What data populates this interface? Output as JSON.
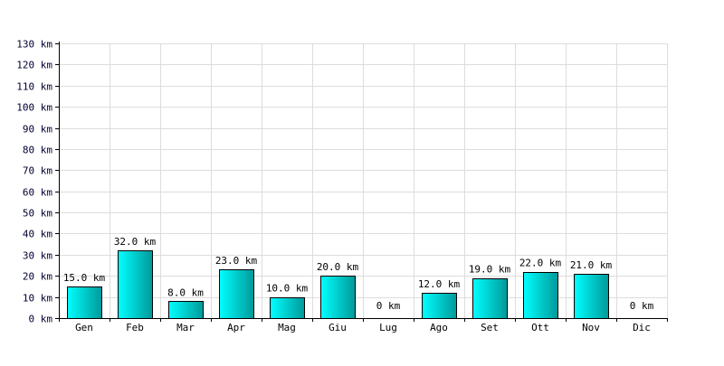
{
  "chart_data": {
    "type": "bar",
    "title": "",
    "xlabel": "",
    "ylabel": "",
    "unit": "km",
    "categories": [
      "Gen",
      "Feb",
      "Mar",
      "Apr",
      "Mag",
      "Giu",
      "Lug",
      "Ago",
      "Set",
      "Ott",
      "Nov",
      "Dic"
    ],
    "values": [
      15.0,
      32.0,
      8.0,
      23.0,
      10.0,
      20.0,
      0,
      12.0,
      19.0,
      22.0,
      21.0,
      0
    ],
    "data_labels": [
      "15.0 km",
      "32.0 km",
      "8.0 km",
      "23.0 km",
      "10.0 km",
      "20.0 km",
      "0 km",
      "12.0 km",
      "19.0 km",
      "22.0 km",
      "21.0 km",
      "0 km"
    ],
    "ylim": [
      0,
      130
    ],
    "yticks": [
      0,
      10,
      20,
      30,
      40,
      50,
      60,
      70,
      80,
      90,
      100,
      110,
      120,
      130
    ],
    "ytick_labels": [
      "0 km",
      "10 km",
      "20 km",
      "30 km",
      "40 km",
      "50 km",
      "60 km",
      "70 km",
      "80 km",
      "90 km",
      "100 km",
      "110 km",
      "120 km",
      "130 km"
    ],
    "grid": true,
    "legend": "none",
    "colors": {
      "bar_light": "#00ffff",
      "bar_dark": "#009999",
      "bar_outline": "#000000",
      "grid": "#dddddd",
      "axis": "#000000",
      "text": "#000033"
    }
  }
}
